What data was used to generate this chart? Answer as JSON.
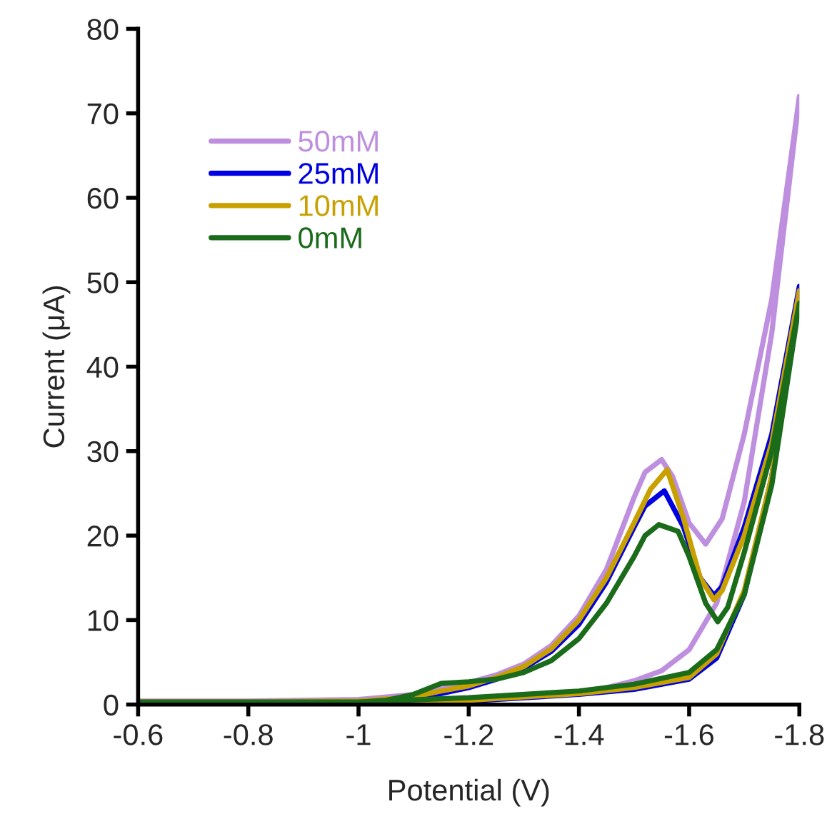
{
  "chart_data": {
    "type": "line",
    "xlabel": "Potential (V)",
    "ylabel": "Current (μA)",
    "xlim": [
      -0.6,
      -1.8
    ],
    "xticks": [
      -0.6,
      -0.8,
      -1,
      -1.2,
      -1.4,
      -1.6,
      -1.8
    ],
    "ylim": [
      0,
      80
    ],
    "yticks": [
      0,
      10,
      20,
      30,
      40,
      50,
      60,
      70,
      80
    ],
    "grid": false,
    "legend": "top left",
    "marker": "none",
    "line_style": "solid",
    "series": [
      {
        "name": "50mM",
        "color": "#bf8fdf",
        "x": [
          -0.6,
          -0.8,
          -1.0,
          -1.2,
          -1.3,
          -1.4,
          -1.45,
          -1.5,
          -1.55,
          -1.6,
          -1.65,
          -1.7,
          -1.75,
          -1.8,
          -1.75,
          -1.7,
          -1.66,
          -1.63,
          -1.6,
          -1.57,
          -1.55,
          -1.52,
          -1.5,
          -1.45,
          -1.4,
          -1.35,
          -1.3,
          -1.25,
          -1.2,
          -1.15,
          -1.1,
          -1.0,
          -0.8,
          -0.6
        ],
        "values": [
          0.3,
          0.3,
          0.4,
          0.6,
          1.0,
          1.5,
          2.0,
          2.8,
          4.0,
          6.5,
          12,
          24,
          44,
          72,
          48,
          32,
          22,
          19,
          21.5,
          27,
          29,
          27.5,
          24.5,
          16,
          10.5,
          7.0,
          4.8,
          3.5,
          2.6,
          2.0,
          1.2,
          0.6,
          0.4,
          0.4
        ]
      },
      {
        "name": "25mM",
        "color": "#0000e0",
        "x": [
          -1.0,
          -1.2,
          -1.4,
          -1.5,
          -1.6,
          -1.65,
          -1.7,
          -1.75,
          -1.8,
          -1.75,
          -1.7,
          -1.66,
          -1.645,
          -1.62,
          -1.59,
          -1.555,
          -1.52,
          -1.5,
          -1.45,
          -1.4,
          -1.35,
          -1.3,
          -1.25,
          -1.2,
          -1.15,
          -1.1,
          -1.0
        ],
        "values": [
          0.1,
          0.4,
          1.2,
          1.8,
          3.0,
          5.5,
          13,
          27,
          49.5,
          32,
          21,
          14,
          12.9,
          15,
          21,
          25.3,
          23.5,
          21,
          14.5,
          9.5,
          6.3,
          4.3,
          3.0,
          2.0,
          1.3,
          0.6,
          0.2
        ]
      },
      {
        "name": "10mM",
        "color": "#c8a000",
        "x": [
          -0.6,
          -0.8,
          -1.0,
          -1.2,
          -1.4,
          -1.5,
          -1.6,
          -1.65,
          -1.7,
          -1.75,
          -1.8,
          -1.75,
          -1.7,
          -1.66,
          -1.645,
          -1.62,
          -1.59,
          -1.56,
          -1.53,
          -1.5,
          -1.45,
          -1.4,
          -1.35,
          -1.3,
          -1.25,
          -1.2,
          -1.15,
          -1.1,
          -1.0,
          -0.8,
          -0.6
        ],
        "values": [
          0.1,
          0.1,
          0.2,
          0.5,
          1.3,
          2.0,
          3.2,
          6,
          13.5,
          27,
          49,
          31,
          20,
          13.5,
          12.4,
          15,
          22,
          27.8,
          25.5,
          21.5,
          15,
          10,
          6.6,
          4.5,
          3.2,
          2.2,
          1.6,
          0.9,
          0.4,
          0.3,
          0.3
        ]
      },
      {
        "name": "0mM",
        "color": "#1a6b1a",
        "x": [
          -0.6,
          -0.8,
          -1.0,
          -1.2,
          -1.4,
          -1.5,
          -1.6,
          -1.65,
          -1.7,
          -1.75,
          -1.8,
          -1.75,
          -1.7,
          -1.67,
          -1.652,
          -1.63,
          -1.6,
          -1.58,
          -1.545,
          -1.52,
          -1.5,
          -1.45,
          -1.4,
          -1.35,
          -1.3,
          -1.25,
          -1.2,
          -1.15,
          -1.1,
          -1.05,
          -1.0,
          -0.8,
          -0.6
        ],
        "values": [
          0.2,
          0.2,
          0.3,
          0.8,
          1.6,
          2.4,
          3.8,
          6.5,
          13,
          26,
          47.5,
          30,
          18,
          11.5,
          9.8,
          12,
          17.5,
          20.5,
          21.3,
          20,
          17.5,
          12,
          7.8,
          5.2,
          3.8,
          3.0,
          2.7,
          2.5,
          1.2,
          0.5,
          0.3,
          0.3,
          0.3
        ]
      }
    ]
  }
}
